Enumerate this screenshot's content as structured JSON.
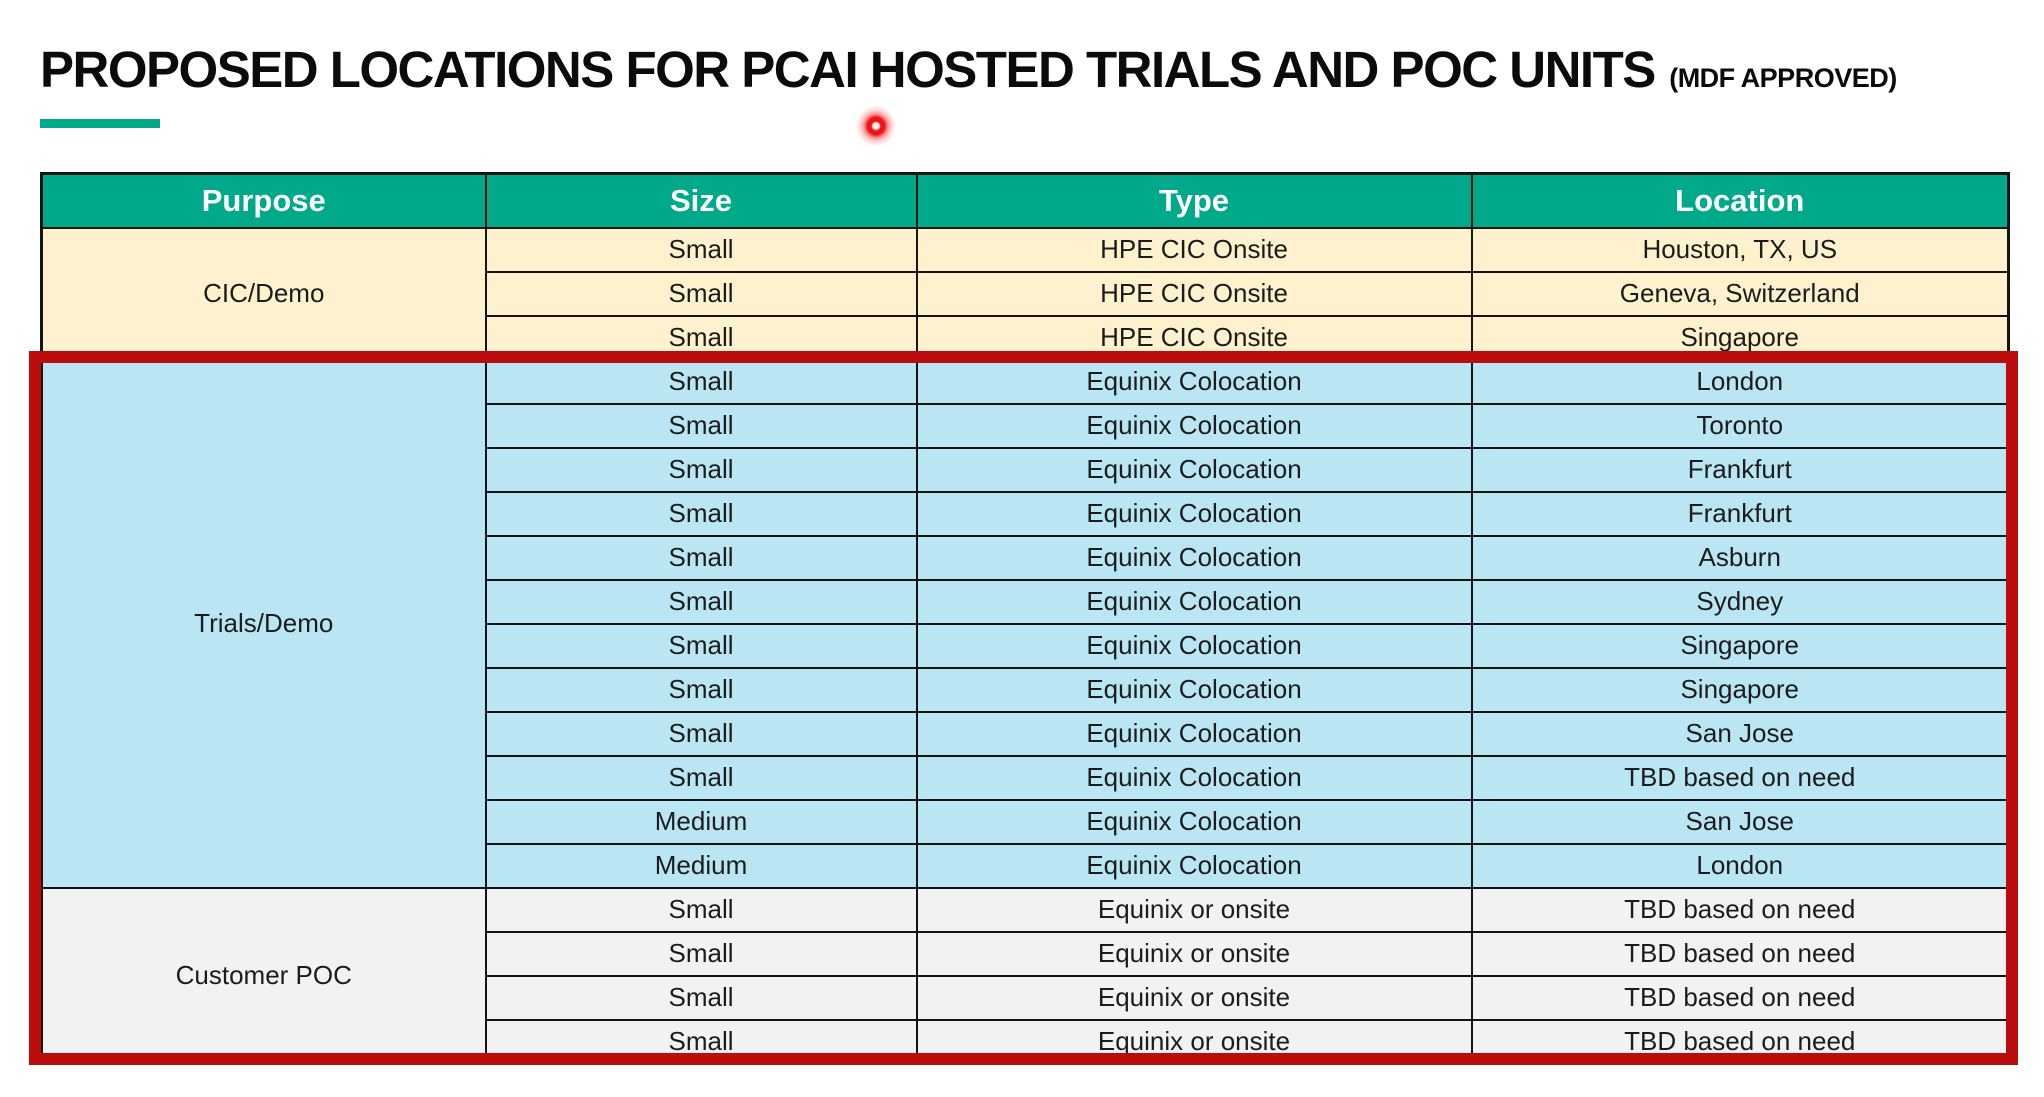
{
  "slide": {
    "title": "PROPOSED LOCATIONS FOR PCAI HOSTED TRIALS AND POC UNITS",
    "title_suffix": "(MDF APPROVED)"
  },
  "colors": {
    "accent_teal": "#00A98A",
    "header_green": "#00A98A",
    "cic_bg": "#FDF2CD",
    "trials_bg": "#BAE6F4",
    "poc_bg": "#F2F2F2",
    "highlight_red": "#BB0D0D",
    "laser_red": "#EE1414",
    "line_black": "#141414"
  },
  "table": {
    "columns": [
      "Purpose",
      "Size",
      "Type",
      "Location"
    ],
    "sections": [
      {
        "purpose": "CIC/Demo",
        "style": "cic",
        "rows": [
          [
            "Small",
            "HPE CIC Onsite",
            "Houston, TX, US"
          ],
          [
            "Small",
            "HPE CIC Onsite",
            "Geneva, Switzerland"
          ],
          [
            "Small",
            "HPE CIC Onsite",
            "Singapore"
          ]
        ]
      },
      {
        "purpose": "Trials/Demo",
        "style": "trials",
        "rows": [
          [
            "Small",
            "Equinix Colocation",
            "London"
          ],
          [
            "Small",
            "Equinix Colocation",
            "Toronto"
          ],
          [
            "Small",
            "Equinix Colocation",
            "Frankfurt"
          ],
          [
            "Small",
            "Equinix Colocation",
            "Frankfurt"
          ],
          [
            "Small",
            "Equinix Colocation",
            "Asburn"
          ],
          [
            "Small",
            "Equinix Colocation",
            "Sydney"
          ],
          [
            "Small",
            "Equinix Colocation",
            "Singapore"
          ],
          [
            "Small",
            "Equinix Colocation",
            "Singapore"
          ],
          [
            "Small",
            "Equinix Colocation",
            "San Jose"
          ],
          [
            "Small",
            "Equinix Colocation",
            "TBD based on need"
          ],
          [
            "Medium",
            "Equinix Colocation",
            "San Jose"
          ],
          [
            "Medium",
            "Equinix Colocation",
            "London"
          ]
        ]
      },
      {
        "purpose": "Customer POC",
        "style": "poc",
        "rows": [
          [
            "Small",
            "Equinix or onsite",
            "TBD based on need"
          ],
          [
            "Small",
            "Equinix or onsite",
            "TBD based on need"
          ],
          [
            "Small",
            "Equinix or onsite",
            "TBD based on need"
          ],
          [
            "Small",
            "Equinix or onsite",
            "TBD based on need"
          ]
        ]
      }
    ]
  }
}
